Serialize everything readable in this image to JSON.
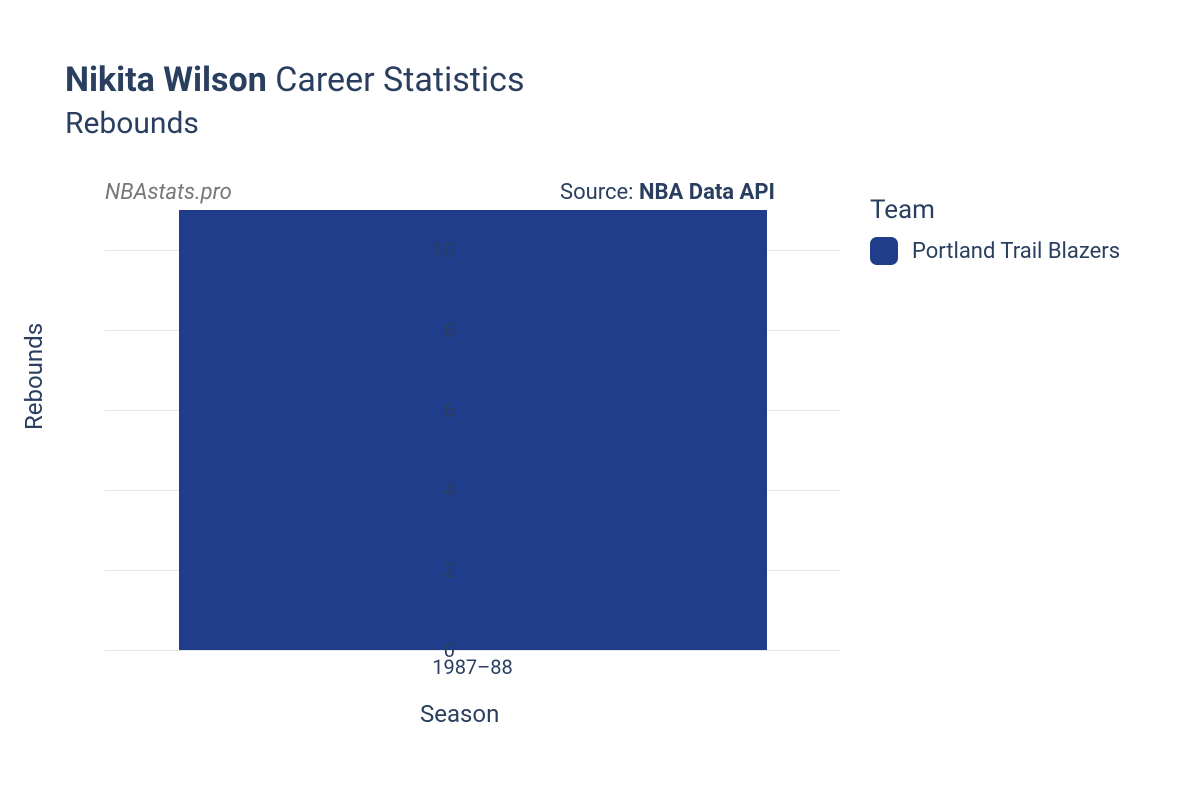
{
  "title": {
    "player_name": "Nikita Wilson",
    "suffix": "Career Statistics",
    "subtitle": "Rebounds"
  },
  "watermark": "NBAstats.pro",
  "source": {
    "prefix": "Source: ",
    "name": "NBA Data API"
  },
  "chart": {
    "type": "bar",
    "xlabel": "Season",
    "ylabel": "Rebounds",
    "ylim": [
      0,
      11
    ],
    "ytick_step": 2,
    "yticks": [
      0,
      2,
      4,
      6,
      8,
      10
    ],
    "categories": [
      "1987–88"
    ],
    "values": [
      11
    ],
    "bar_colors": [
      "#1f3d8a"
    ],
    "bar_width": 0.8,
    "background_color": "#ffffff",
    "grid_color": "#e5e5e5",
    "tick_fontsize": 20,
    "label_fontsize": 24
  },
  "legend": {
    "title": "Team",
    "items": [
      {
        "label": "Portland Trail Blazers",
        "color": "#1f3d8a"
      }
    ]
  }
}
